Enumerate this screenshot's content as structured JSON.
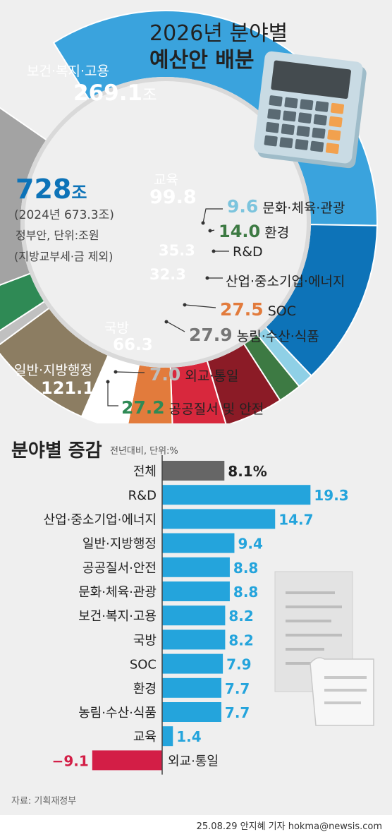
{
  "title_line1": "2026년 분야별",
  "title_line2": "예산안 배분",
  "total": {
    "value": "728",
    "unit": "조",
    "prev": "(2024년 673.3조)",
    "note1": "정부안, 단위:조원",
    "note2": "(지방교부세·금 제외)"
  },
  "section2": {
    "title": "분야별 증감",
    "unit": "전년대비, 단위:%"
  },
  "source": "자료: 기획재정부",
  "credit": "25.08.29 안지혜 기자 hokma@newsis.com",
  "colors": {
    "health": "#3aa3dd",
    "edu": "#0d73b8",
    "culture": "#8fd0e6",
    "env": "#3d7a43",
    "rnd": "#8b1b26",
    "industry": "#d8283d",
    "soc": "#e27b3c",
    "agri": "#ffffff",
    "defense": "#8c7d62",
    "foreign": "#c0c0c0",
    "safety": "#2f8a55",
    "general": "#a3a3a3",
    "bar_total": "#666666",
    "bar_pos": "#24a4dc",
    "bar_neg": "#d31e46"
  },
  "chart_data": [
    {
      "type": "pie",
      "title": "2026년 분야별 예산안 배분",
      "unit": "조원",
      "total": 728,
      "slices": [
        {
          "name": "보건·복지·고용",
          "value": 269.1,
          "label": "269.1",
          "suffix": "조"
        },
        {
          "name": "교육",
          "value": 99.8,
          "label": "99.8"
        },
        {
          "name": "문화·체육·관광",
          "value": 9.6,
          "label": "9.6"
        },
        {
          "name": "환경",
          "value": 14.0,
          "label": "14.0"
        },
        {
          "name": "R&D",
          "value": 35.3,
          "label": "35.3"
        },
        {
          "name": "산업·중소기업·에너지",
          "value": 32.3,
          "label": "32.3"
        },
        {
          "name": "SOC",
          "value": 27.5,
          "label": "27.5"
        },
        {
          "name": "농림·수산·식품",
          "value": 27.9,
          "label": "27.9"
        },
        {
          "name": "국방",
          "value": 66.3,
          "label": "66.3"
        },
        {
          "name": "외교·통일",
          "value": 7.0,
          "label": "7.0"
        },
        {
          "name": "공공질서 및 안전",
          "value": 27.2,
          "label": "27.2"
        },
        {
          "name": "일반·지방행정",
          "value": 121.1,
          "label": "121.1"
        }
      ]
    },
    {
      "type": "bar",
      "orientation": "horizontal",
      "title": "분야별 증감",
      "unit": "전년대비, 단위:%",
      "categories": [
        "전체",
        "R&D",
        "산업·중소기업·에너지",
        "일반·지방행정",
        "공공질서·안전",
        "문화·체육·관광",
        "보건·복지·고용",
        "국방",
        "SOC",
        "환경",
        "농림·수산·식품",
        "교육",
        "외교·통일"
      ],
      "values": [
        8.1,
        19.3,
        14.7,
        9.4,
        8.8,
        8.8,
        8.2,
        8.2,
        7.9,
        7.7,
        7.7,
        1.4,
        -9.1
      ],
      "labels": [
        "8.1%",
        "19.3",
        "14.7",
        "9.4",
        "8.8",
        "8.8",
        "8.2",
        "8.2",
        "7.9",
        "7.7",
        "7.7",
        "1.4",
        "−9.1"
      ]
    }
  ]
}
